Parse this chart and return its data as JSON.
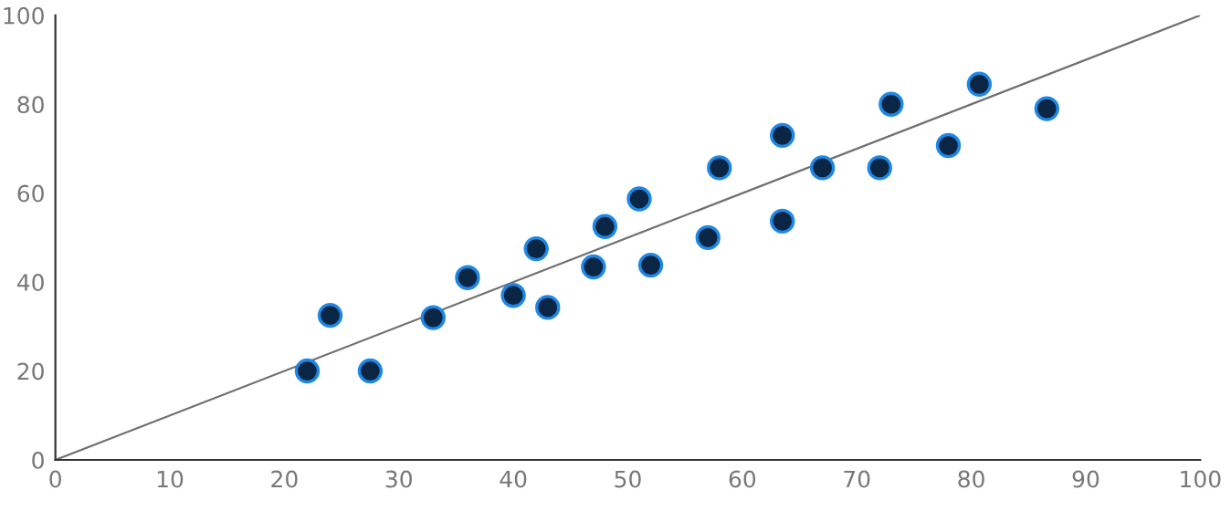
{
  "chart_data": {
    "type": "scatter",
    "xlim": [
      0,
      100
    ],
    "ylim": [
      0,
      100
    ],
    "xticks": [
      0,
      10,
      20,
      30,
      40,
      50,
      60,
      70,
      80,
      90,
      100
    ],
    "yticks": [
      0,
      20,
      40,
      60,
      80,
      100
    ],
    "grid": false,
    "series": [
      {
        "type": "scatter",
        "marker": "circle",
        "color": "#0b2545",
        "x": [
          22,
          24,
          27.5,
          33,
          36,
          40,
          42,
          43,
          47,
          48,
          51,
          52,
          57,
          58,
          63.5,
          63.5,
          67,
          72,
          73,
          78,
          80.7,
          86.6
        ],
        "values": [
          20,
          32.5,
          20,
          32,
          41,
          37,
          47.5,
          34.3,
          43.4,
          52.5,
          58.7,
          43.8,
          50,
          65.7,
          53.7,
          73,
          65.7,
          65.7,
          80,
          70.7,
          84.5,
          79
        ]
      },
      {
        "type": "line",
        "color": "#707070",
        "x": [
          0,
          100
        ],
        "values": [
          0,
          100
        ]
      }
    ]
  }
}
